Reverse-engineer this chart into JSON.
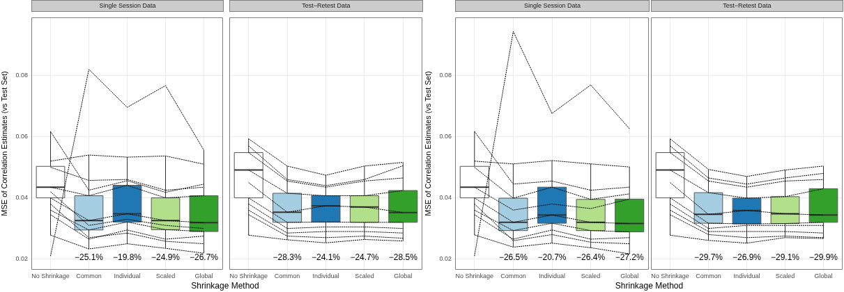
{
  "chart_data": [
    {
      "type": "box",
      "title": "Single Session Data",
      "xlabel": "Shrinkage Method",
      "ylabel": "MSE of Correlation Estimates (vs Test Set)",
      "categories": [
        "No Shrinkage",
        "Common",
        "Individual",
        "Scaled",
        "Global"
      ],
      "colors": [
        "#ffffff",
        "#a6cee3",
        "#1f78b4",
        "#b2df8a",
        "#33a02c"
      ],
      "boxes": [
        {
          "low": 0.0278,
          "q1": 0.04,
          "median": 0.0435,
          "q3": 0.0503,
          "high": 0.0617
        },
        {
          "low": 0.0233,
          "q1": 0.0295,
          "median": 0.0326,
          "q3": 0.0407,
          "high": 0.054
        },
        {
          "low": 0.025,
          "q1": 0.0321,
          "median": 0.0348,
          "q3": 0.0441,
          "high": 0.0533
        },
        {
          "low": 0.0235,
          "q1": 0.0296,
          "median": 0.0326,
          "q3": 0.04,
          "high": 0.0537
        },
        {
          "low": 0.0219,
          "q1": 0.029,
          "median": 0.0319,
          "q3": 0.0407,
          "high": 0.0556
        }
      ],
      "series": [
        {
          "type": "line",
          "color": "#000000",
          "values": [
            0.021,
            0.082,
            0.0696,
            0.0767,
            0.0556
          ]
        },
        {
          "type": "line",
          "color": "#000000",
          "values": [
            0.052,
            0.054,
            0.0533,
            0.0537,
            0.051
          ]
        },
        {
          "type": "line",
          "color": "#000000",
          "values": [
            0.0617,
            0.0425,
            0.0456,
            0.0418,
            0.0445
          ]
        },
        {
          "type": "line",
          "color": "#000000",
          "values": [
            0.05,
            0.0457,
            0.046,
            0.0425,
            0.0435
          ]
        },
        {
          "type": "line",
          "color": "#000000",
          "values": [
            0.0435,
            0.0407,
            0.0441,
            0.04,
            0.0407
          ]
        },
        {
          "type": "line",
          "color": "#000000",
          "values": [
            0.0278,
            0.0233,
            0.025,
            0.0235,
            0.0219
          ]
        },
        {
          "type": "line",
          "color": "#000000",
          "values": [
            0.04,
            0.0326,
            0.0348,
            0.0326,
            0.0319
          ]
        },
        {
          "type": "line",
          "color": "#000000",
          "values": [
            0.036,
            0.0295,
            0.0321,
            0.0296,
            0.029
          ]
        },
        {
          "type": "line",
          "color": "#000000",
          "values": [
            0.0345,
            0.0265,
            0.0295,
            0.0265,
            0.0275
          ]
        },
        {
          "type": "line",
          "color": "#000000",
          "values": [
            0.038,
            0.027,
            0.0285,
            0.0258,
            0.025
          ]
        },
        {
          "type": "line",
          "color": "#000000",
          "values": [
            0.042,
            0.031,
            0.033,
            0.031,
            0.03
          ]
        }
      ],
      "line_style": "dotted",
      "ylim": [
        0.0165,
        0.099
      ],
      "yticks": [
        0.02,
        0.04,
        0.06,
        0.08
      ],
      "grid": true,
      "annotations": [
        "−25.1%",
        "−19.8%",
        "−24.9%",
        "−26.7%"
      ]
    },
    {
      "type": "box",
      "title": "Test−Retest Data",
      "categories": [
        "No Shrinkage",
        "Common",
        "Individual",
        "Scaled",
        "Global"
      ],
      "colors": [
        "#ffffff",
        "#a6cee3",
        "#1f78b4",
        "#b2df8a",
        "#33a02c"
      ],
      "boxes": [
        {
          "low": 0.0278,
          "q1": 0.04,
          "median": 0.0491,
          "q3": 0.0548,
          "high": 0.0593
        },
        {
          "low": 0.0263,
          "q1": 0.032,
          "median": 0.0353,
          "q3": 0.0415,
          "high": 0.0504
        },
        {
          "low": 0.0253,
          "q1": 0.0321,
          "median": 0.0374,
          "q3": 0.0407,
          "high": 0.0474
        },
        {
          "low": 0.0264,
          "q1": 0.032,
          "median": 0.037,
          "q3": 0.0407,
          "high": 0.0504
        },
        {
          "low": 0.0259,
          "q1": 0.032,
          "median": 0.0352,
          "q3": 0.0424,
          "high": 0.0516
        }
      ],
      "series": [
        {
          "type": "line",
          "color": "#000000",
          "values": [
            0.0593,
            0.0504,
            0.0474,
            0.0504,
            0.0516
          ]
        },
        {
          "type": "line",
          "color": "#000000",
          "values": [
            0.057,
            0.046,
            0.044,
            0.046,
            0.0505
          ]
        },
        {
          "type": "line",
          "color": "#000000",
          "values": [
            0.0548,
            0.0455,
            0.0435,
            0.0455,
            0.0465
          ]
        },
        {
          "type": "line",
          "color": "#000000",
          "values": [
            0.0491,
            0.0415,
            0.0407,
            0.0407,
            0.0424
          ]
        },
        {
          "type": "line",
          "color": "#000000",
          "values": [
            0.045,
            0.0353,
            0.0374,
            0.037,
            0.0352
          ]
        },
        {
          "type": "line",
          "color": "#000000",
          "values": [
            0.04,
            0.032,
            0.0321,
            0.032,
            0.032
          ]
        },
        {
          "type": "line",
          "color": "#000000",
          "values": [
            0.038,
            0.03,
            0.0305,
            0.0305,
            0.03
          ]
        },
        {
          "type": "line",
          "color": "#000000",
          "values": [
            0.036,
            0.0285,
            0.029,
            0.029,
            0.0285
          ]
        },
        {
          "type": "line",
          "color": "#000000",
          "values": [
            0.0278,
            0.0263,
            0.0253,
            0.0264,
            0.0259
          ]
        },
        {
          "type": "line",
          "color": "#000000",
          "values": [
            0.0345,
            0.0275,
            0.027,
            0.0275,
            0.0268
          ]
        }
      ],
      "line_style": "dotted",
      "ylim": [
        0.0165,
        0.099
      ],
      "yticks": [
        0.02,
        0.04,
        0.06,
        0.08
      ],
      "grid": true,
      "tick_labels": "x",
      "annotations": [
        "−28.3%",
        "−24.1%",
        "−24.7%",
        "−28.5%"
      ]
    },
    {
      "type": "box",
      "title": "Single Session Data",
      "xlabel": "Shrinkage Method",
      "ylabel": "MSE of Correlation Estimates (vs Test Set)",
      "categories": [
        "No Shrinkage",
        "Common",
        "Individual",
        "Scaled",
        "Global"
      ],
      "colors": [
        "#ffffff",
        "#a6cee3",
        "#1f78b4",
        "#b2df8a",
        "#33a02c"
      ],
      "boxes": [
        {
          "low": 0.0279,
          "q1": 0.04,
          "median": 0.0435,
          "q3": 0.0503,
          "high": 0.0617
        },
        {
          "low": 0.0239,
          "q1": 0.0293,
          "median": 0.032,
          "q3": 0.0399,
          "high": 0.0511
        },
        {
          "low": 0.0252,
          "q1": 0.0317,
          "median": 0.0344,
          "q3": 0.0435,
          "high": 0.0522
        },
        {
          "low": 0.0237,
          "q1": 0.0293,
          "median": 0.032,
          "q3": 0.0395,
          "high": 0.0511
        },
        {
          "low": 0.0217,
          "q1": 0.0289,
          "median": 0.0316,
          "q3": 0.0396,
          "high": 0.0501
        }
      ],
      "series": [
        {
          "type": "line",
          "color": "#000000",
          "values": [
            0.021,
            0.0944,
            0.0676,
            0.0769,
            0.0626
          ]
        },
        {
          "type": "line",
          "color": "#000000",
          "values": [
            0.052,
            0.0511,
            0.0522,
            0.0511,
            0.0501
          ]
        },
        {
          "type": "line",
          "color": "#000000",
          "values": [
            0.0617,
            0.0445,
            0.0455,
            0.0425,
            0.0435
          ]
        },
        {
          "type": "line",
          "color": "#000000",
          "values": [
            0.05,
            0.0399,
            0.0435,
            0.0395,
            0.0413
          ]
        },
        {
          "type": "line",
          "color": "#000000",
          "values": [
            0.0435,
            0.036,
            0.038,
            0.0365,
            0.0396
          ]
        },
        {
          "type": "line",
          "color": "#000000",
          "values": [
            0.04,
            0.032,
            0.0344,
            0.032,
            0.0316
          ]
        },
        {
          "type": "line",
          "color": "#000000",
          "values": [
            0.036,
            0.0293,
            0.0317,
            0.0293,
            0.0289
          ]
        },
        {
          "type": "line",
          "color": "#000000",
          "values": [
            0.0345,
            0.0265,
            0.0295,
            0.0265,
            0.027
          ]
        },
        {
          "type": "line",
          "color": "#000000",
          "values": [
            0.038,
            0.026,
            0.028,
            0.0255,
            0.025
          ]
        },
        {
          "type": "line",
          "color": "#000000",
          "values": [
            0.0279,
            0.0239,
            0.0252,
            0.0237,
            0.0217
          ]
        }
      ],
      "line_style": "dotted",
      "ylim": [
        0.0165,
        0.099
      ],
      "yticks": [
        0.02,
        0.04,
        0.06,
        0.08
      ],
      "grid": true,
      "annotations": [
        "−26.5%",
        "−20.7%",
        "−26.4%",
        "−27.2%"
      ]
    },
    {
      "type": "box",
      "title": "Test−Retest Data",
      "categories": [
        "No Shrinkage",
        "Common",
        "Individual",
        "Scaled",
        "Global"
      ],
      "colors": [
        "#ffffff",
        "#a6cee3",
        "#1f78b4",
        "#b2df8a",
        "#33a02c"
      ],
      "boxes": [
        {
          "low": 0.0278,
          "q1": 0.04,
          "median": 0.0491,
          "q3": 0.0548,
          "high": 0.0593
        },
        {
          "low": 0.0261,
          "q1": 0.0317,
          "median": 0.0346,
          "q3": 0.0417,
          "high": 0.0493
        },
        {
          "low": 0.0252,
          "q1": 0.0315,
          "median": 0.0359,
          "q3": 0.0399,
          "high": 0.047
        },
        {
          "low": 0.027,
          "q1": 0.0316,
          "median": 0.0348,
          "q3": 0.0404,
          "high": 0.0491
        },
        {
          "low": 0.0267,
          "q1": 0.032,
          "median": 0.0344,
          "q3": 0.043,
          "high": 0.0504
        }
      ],
      "series": [
        {
          "type": "line",
          "color": "#000000",
          "values": [
            0.0593,
            0.0493,
            0.047,
            0.0491,
            0.0504
          ]
        },
        {
          "type": "line",
          "color": "#000000",
          "values": [
            0.057,
            0.0465,
            0.0445,
            0.0465,
            0.048
          ]
        },
        {
          "type": "line",
          "color": "#000000",
          "values": [
            0.0548,
            0.0455,
            0.0435,
            0.0455,
            0.046
          ]
        },
        {
          "type": "line",
          "color": "#000000",
          "values": [
            0.0491,
            0.0417,
            0.0399,
            0.0404,
            0.043
          ]
        },
        {
          "type": "line",
          "color": "#000000",
          "values": [
            0.045,
            0.0346,
            0.0359,
            0.0348,
            0.0344
          ]
        },
        {
          "type": "line",
          "color": "#000000",
          "values": [
            0.04,
            0.0317,
            0.0315,
            0.0316,
            0.032
          ]
        },
        {
          "type": "line",
          "color": "#000000",
          "values": [
            0.038,
            0.03,
            0.031,
            0.031,
            0.031
          ]
        },
        {
          "type": "line",
          "color": "#000000",
          "values": [
            0.036,
            0.029,
            0.029,
            0.029,
            0.0285
          ]
        },
        {
          "type": "line",
          "color": "#000000",
          "values": [
            0.0278,
            0.0261,
            0.0252,
            0.027,
            0.0267
          ]
        },
        {
          "type": "line",
          "color": "#000000",
          "values": [
            0.0345,
            0.028,
            0.027,
            0.0275,
            0.027
          ]
        }
      ],
      "line_style": "dotted",
      "ylim": [
        0.0165,
        0.099
      ],
      "yticks": [
        0.02,
        0.04,
        0.06,
        0.08
      ],
      "grid": true,
      "tick_labels": "x",
      "annotations": [
        "−29.7%",
        "−26.9%",
        "−29.1%",
        "−29.9%"
      ]
    }
  ]
}
